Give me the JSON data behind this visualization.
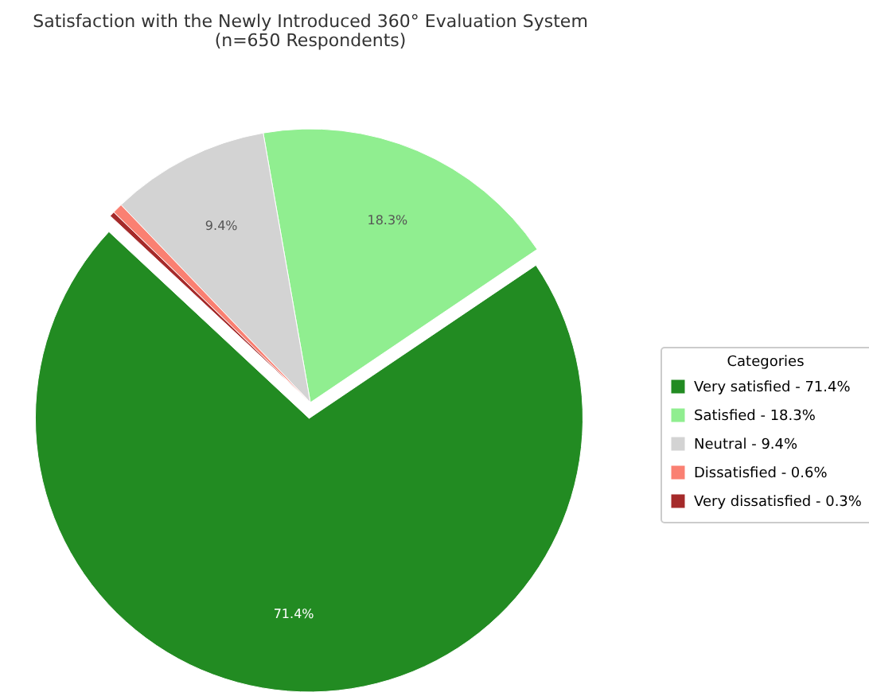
{
  "chart_data": {
    "type": "pie",
    "title": "Satisfaction with the Newly Introduced 360° Evaluation System",
    "subtitle": "(n=650 Respondents)",
    "legend_title": "Categories",
    "legend": "right",
    "categories": [
      "Very satisfied - 71.4%",
      "Satisfied - 18.3%",
      "Neutral - 9.4%",
      "Dissatisfied - 0.6%",
      "Very dissatisfied - 0.3%"
    ],
    "values": [
      71.4,
      18.3,
      9.4,
      0.6,
      0.3
    ],
    "colors": [
      "#228b22",
      "#90ee90",
      "#d3d3d3",
      "#fa8072",
      "#a52a2a"
    ],
    "value_labels": [
      "71.4%",
      "18.3%",
      "9.4%",
      null,
      null
    ]
  }
}
